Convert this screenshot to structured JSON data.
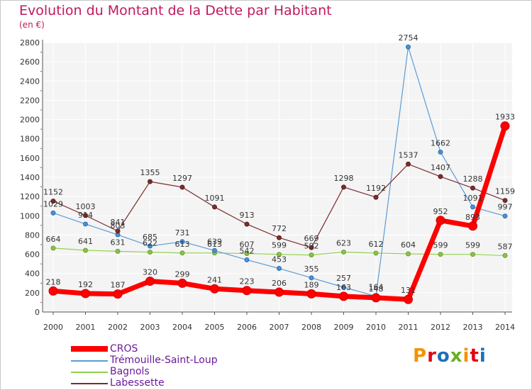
{
  "title": "Evolution du Montant de la Dette par Habitant",
  "unit": "(en €)",
  "logo": {
    "text": "Proxiti",
    "colors": [
      "#f39200",
      "#e30613",
      "#1d71b8",
      "#6ab023",
      "#f39200",
      "#e30613",
      "#1d71b8"
    ]
  },
  "chart_data": {
    "type": "line",
    "categories": [
      "2000",
      "2001",
      "2002",
      "2003",
      "2004",
      "2005",
      "2006",
      "2007",
      "2008",
      "2009",
      "2010",
      "2011",
      "2012",
      "2013",
      "2014"
    ],
    "ylim": [
      0,
      2800
    ],
    "yticks": [
      0,
      200,
      400,
      600,
      800,
      1000,
      1200,
      1400,
      1600,
      1800,
      2000,
      2200,
      2400,
      2600,
      2800
    ],
    "grid": true,
    "legend_position": "bottom-left",
    "series": [
      {
        "name": "CROS",
        "color": "#ff0000",
        "values": [
          218,
          192,
          187,
          320,
          299,
          241,
          223,
          206,
          189,
          163,
          148,
          131,
          952,
          893,
          1933
        ],
        "labels": [
          "218",
          "192",
          "187",
          "320",
          "299",
          "241",
          "223",
          "206",
          "189",
          "163",
          "148",
          "131",
          "952",
          "893",
          "1933"
        ]
      },
      {
        "name": "Trémouille-Saint-Loup",
        "color": "#5b9bd5",
        "values": [
          1029,
          914,
          803,
          685,
          731,
          639,
          542,
          453,
          355,
          257,
          164,
          2754,
          1662,
          1091,
          997
        ],
        "labels": [
          "1029",
          "914",
          "803",
          "685",
          "731",
          "639",
          "542",
          "453",
          "355",
          "257",
          "164",
          "2754",
          "1662",
          "1091",
          "997"
        ]
      },
      {
        "name": "Bagnols",
        "color": "#92d050",
        "values": [
          664,
          641,
          631,
          622,
          613,
          613,
          607,
          599,
          592,
          623,
          612,
          604,
          599,
          599,
          587
        ],
        "labels": [
          "664",
          "641",
          "631",
          "622",
          "613",
          "613",
          "607",
          "599",
          "592",
          "623",
          "612",
          "604",
          "599",
          "599",
          "587"
        ]
      },
      {
        "name": "Labessette",
        "color": "#7b2d2d",
        "values": [
          1152,
          1003,
          841,
          1355,
          1297,
          1091,
          913,
          772,
          669,
          1298,
          1192,
          1537,
          1407,
          1288,
          1159
        ],
        "labels": [
          "1152",
          "1003",
          "841",
          "1355",
          "1297",
          "1091",
          "913",
          "772",
          "669",
          "1298",
          "1192",
          "1537",
          "1407",
          "1288",
          "1159"
        ]
      }
    ]
  }
}
